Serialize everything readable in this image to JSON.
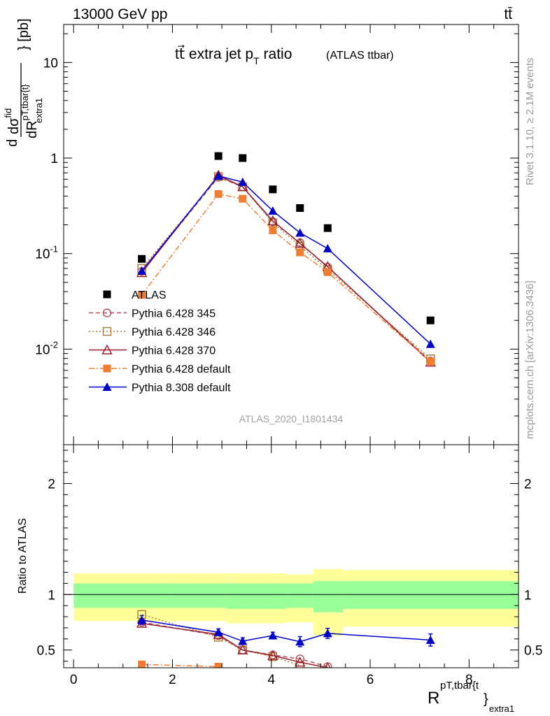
{
  "header": {
    "left": "13000 GeV pp",
    "right": "tt̄",
    "title_main": "tt⃗ extra jet p",
    "title_sub": "T",
    "title_tail": " ratio",
    "title_small": "(ATLAS ttbar)",
    "watermark": "ATLAS_2020_I1801434"
  },
  "side": {
    "rivet": "Rivet 3.1.10, ≥ 2.1M events",
    "mcplots": "mcplots.cern.ch [arXiv:1306.3436]"
  },
  "axes": {
    "ylabel_d": "d",
    "ylabel_num": "dσ",
    "ylabel_num_sup": "fid",
    "ylabel_den": "dR",
    "ylabel_den_sup": "pT,tbar{t}",
    "ylabel_den_sub": "extra1",
    "ylabel_unit": "[pb]",
    "ratio_ylabel": "Ratio to ATLAS",
    "xlabel": "R",
    "xlabel_sup": "pT,tbar{t",
    "xlabel_close": "}",
    "xlabel_sub": "extra1"
  },
  "chart_data": [
    {
      "type": "scatter",
      "panel": "main",
      "yscale": "log",
      "xlim": [
        -0.2,
        9.0
      ],
      "ylim": [
        0.001,
        25
      ],
      "yticks": [
        {
          "value": 10,
          "label": "10"
        },
        {
          "value": 1,
          "label": "1"
        },
        {
          "value": 0.1,
          "label": "10^-1"
        },
        {
          "value": 0.01,
          "label": "10^-2"
        }
      ],
      "legend_position": "lower-left",
      "series": [
        {
          "name": "ATLAS",
          "color": "#000000",
          "marker": "square-filled",
          "line": "none",
          "x": [
            1.38,
            2.93,
            3.42,
            4.03,
            4.58,
            5.14,
            7.22
          ],
          "y": [
            0.088,
            1.05,
            1.0,
            0.47,
            0.3,
            0.185,
            0.02
          ]
        },
        {
          "name": "Pythia 6.428 345",
          "color": "#b44f5a",
          "marker": "circle-open",
          "line": "dashed",
          "x": [
            1.38,
            2.93,
            3.42,
            4.03,
            4.58,
            5.14,
            7.22
          ],
          "y": [
            0.065,
            0.63,
            0.5,
            0.215,
            0.13,
            0.072,
            0.0075
          ]
        },
        {
          "name": "Pythia 6.428 346",
          "color": "#a57a33",
          "marker": "square-open",
          "line": "dotted",
          "x": [
            1.38,
            2.93,
            3.42,
            4.03,
            4.58,
            5.14,
            7.22
          ],
          "y": [
            0.07,
            0.64,
            0.5,
            0.21,
            0.12,
            0.068,
            0.0079
          ]
        },
        {
          "name": "Pythia 6.428 370",
          "color": "#9b1b2a",
          "marker": "triangle-open",
          "line": "solid",
          "x": [
            1.38,
            2.93,
            3.42,
            4.03,
            4.58,
            5.14,
            7.22
          ],
          "y": [
            0.063,
            0.66,
            0.5,
            0.22,
            0.128,
            0.073,
            0.0073
          ]
        },
        {
          "name": "Pythia 6.428 default",
          "color": "#f47c2f",
          "marker": "square-filled",
          "line": "dashdot",
          "x": [
            1.38,
            2.93,
            3.42,
            4.03,
            4.58,
            5.14,
            7.22
          ],
          "y": [
            0.037,
            0.42,
            0.375,
            0.175,
            0.103,
            0.064,
            0.0074
          ]
        },
        {
          "name": "Pythia 8.308 default",
          "color": "#0000cc",
          "marker": "triangle-filled",
          "line": "solid",
          "x": [
            1.38,
            2.93,
            3.42,
            4.03,
            4.58,
            5.14,
            7.22
          ],
          "y": [
            0.066,
            0.65,
            0.56,
            0.28,
            0.165,
            0.113,
            0.0113
          ]
        }
      ]
    },
    {
      "type": "scatter",
      "panel": "ratio",
      "xlim": [
        -0.2,
        9.0
      ],
      "ylim": [
        0.34,
        2.35
      ],
      "xticks": [
        0,
        2,
        4,
        6,
        8
      ],
      "yticks": [
        {
          "value": 0.5,
          "label": "0.5"
        },
        {
          "value": 1,
          "label": "1"
        },
        {
          "value": 2,
          "label": "2"
        }
      ],
      "bands": [
        {
          "x0": 0.0,
          "x1": 2.0,
          "yellow": [
            0.76,
            1.19
          ],
          "green": [
            0.88,
            1.1
          ]
        },
        {
          "x0": 2.0,
          "x1": 3.1,
          "yellow": [
            0.76,
            1.19
          ],
          "green": [
            0.88,
            1.1
          ]
        },
        {
          "x0": 3.1,
          "x1": 3.7,
          "yellow": [
            0.74,
            1.19
          ],
          "green": [
            0.87,
            1.1
          ]
        },
        {
          "x0": 3.7,
          "x1": 4.3,
          "yellow": [
            0.74,
            1.19
          ],
          "green": [
            0.87,
            1.1
          ]
        },
        {
          "x0": 4.3,
          "x1": 4.85,
          "yellow": [
            0.75,
            1.18
          ],
          "green": [
            0.88,
            1.1
          ]
        },
        {
          "x0": 4.85,
          "x1": 5.45,
          "yellow": [
            0.63,
            1.23
          ],
          "green": [
            0.84,
            1.12
          ]
        },
        {
          "x0": 5.45,
          "x1": 9.0,
          "yellow": [
            0.71,
            1.22
          ],
          "green": [
            0.87,
            1.12
          ]
        }
      ],
      "series": [
        {
          "name": "Pythia 6.428 345",
          "color": "#b44f5a",
          "marker": "circle-open",
          "line": "dashed",
          "x": [
            1.38,
            2.93,
            3.42,
            4.03,
            4.58,
            5.14
          ],
          "y": [
            0.75,
            0.63,
            0.5,
            0.455,
            0.42,
            0.35
          ]
        },
        {
          "name": "Pythia 6.428 346",
          "color": "#a57a33",
          "marker": "square-open",
          "line": "dotted",
          "x": [
            1.38,
            2.93,
            3.42,
            4.03,
            4.58
          ],
          "y": [
            0.82,
            0.615,
            0.5,
            0.44,
            0.36
          ]
        },
        {
          "name": "Pythia 6.428 370",
          "color": "#9b1b2a",
          "marker": "triangle-open",
          "line": "solid",
          "x": [
            1.38,
            2.93,
            3.42,
            4.03,
            4.58,
            5.14
          ],
          "y": [
            0.74,
            0.64,
            0.5,
            0.45,
            0.39,
            0.34
          ]
        },
        {
          "name": "Pythia 6.428 default",
          "color": "#f47c2f",
          "marker": "square-filled",
          "line": "dashdot",
          "x": [
            1.38,
            2.93
          ],
          "y": [
            0.37,
            0.35
          ]
        },
        {
          "name": "Pythia 8.308 default",
          "color": "#0000cc",
          "marker": "triangle-filled",
          "line": "solid",
          "x": [
            1.38,
            2.93,
            3.42,
            4.03,
            4.58,
            5.14,
            7.22
          ],
          "y": [
            0.77,
            0.66,
            0.58,
            0.63,
            0.575,
            0.65,
            0.59
          ],
          "yerr": [
            0.04,
            0.03,
            0.03,
            0.03,
            0.045,
            0.045,
            0.055
          ]
        }
      ]
    }
  ]
}
